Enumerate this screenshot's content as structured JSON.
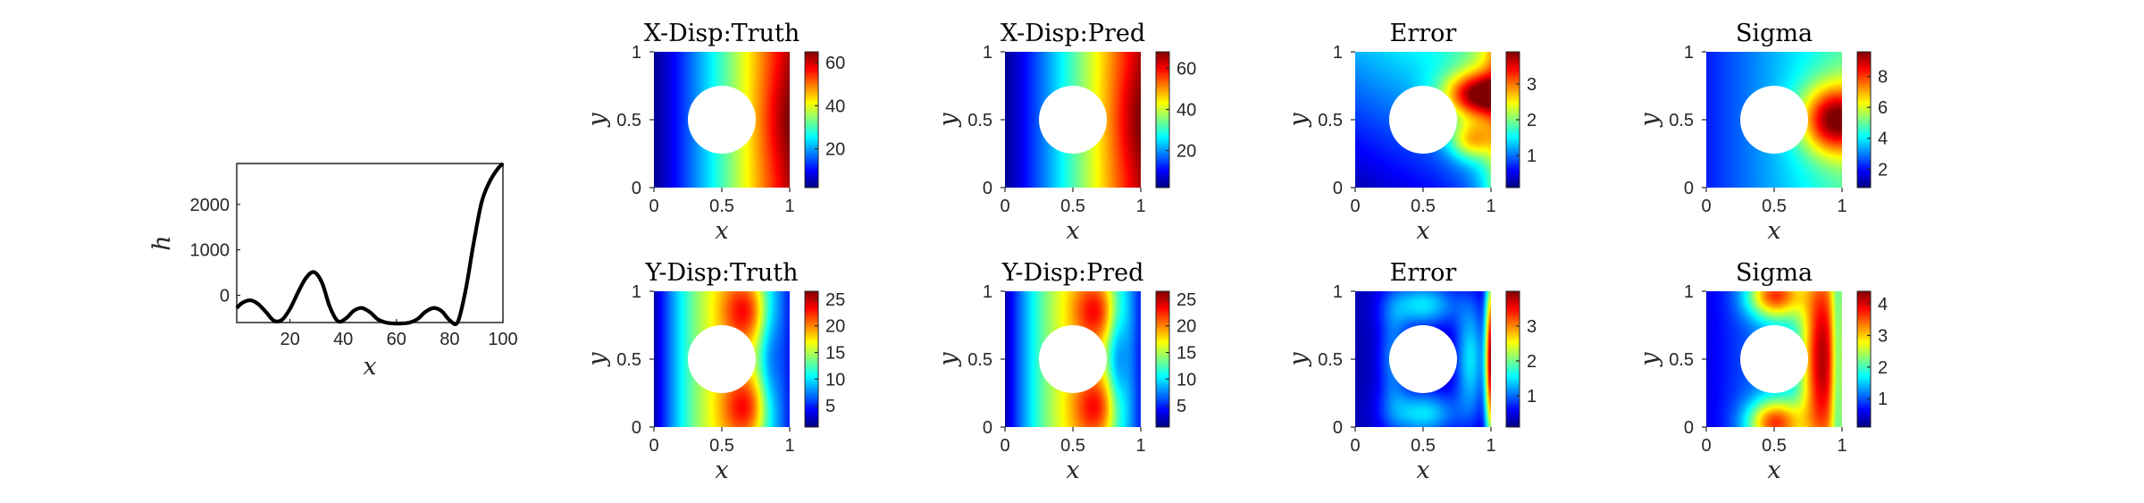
{
  "chart_data": [
    {
      "type": "line",
      "title": "",
      "xlabel": "x",
      "ylabel": "h",
      "xlim": [
        0,
        100
      ],
      "ylim": [
        -600,
        2900
      ],
      "xticks": [
        "20",
        "40",
        "60",
        "80",
        "100"
      ],
      "yticks": [
        "0",
        "1000",
        "2000"
      ],
      "grid": false,
      "legend": "none",
      "series": [
        {
          "color": "#000000",
          "x": [
            0,
            2,
            5,
            8,
            11,
            14,
            17,
            20,
            23,
            26,
            29,
            32,
            35,
            38,
            41,
            44,
            47,
            50,
            53,
            56,
            59,
            62,
            65,
            68,
            71,
            74,
            77,
            80,
            83,
            86,
            89,
            92,
            95,
            98,
            100
          ],
          "y": [
            -280,
            -170,
            -110,
            -190,
            -370,
            -560,
            -540,
            -300,
            60,
            380,
            510,
            280,
            -260,
            -570,
            -510,
            -340,
            -280,
            -370,
            -530,
            -600,
            -620,
            -620,
            -600,
            -520,
            -360,
            -280,
            -350,
            -550,
            -590,
            120,
            1150,
            2050,
            2500,
            2780,
            2900
          ]
        }
      ]
    },
    {
      "type": "heatmap",
      "title": "X-Disp:Truth",
      "xlabel": "x",
      "ylabel": "y",
      "xlim": [
        0,
        1
      ],
      "ylim": [
        0,
        1
      ],
      "xticks": [
        "0",
        "0.5",
        "1"
      ],
      "yticks": [
        "0",
        "0.5",
        "1"
      ],
      "colormap": "jet",
      "colorbar": {
        "min": 2,
        "max": 65,
        "ticks": [
          "20",
          "40",
          "60"
        ],
        "tick_values": [
          20,
          40,
          60
        ]
      },
      "hole": {
        "center": [
          0.5,
          0.5
        ],
        "radius": 0.25
      }
    },
    {
      "type": "heatmap",
      "title": "X-Disp:Pred",
      "xlabel": "x",
      "ylabel": "y",
      "xlim": [
        0,
        1
      ],
      "ylim": [
        0,
        1
      ],
      "xticks": [
        "0",
        "0.5",
        "1"
      ],
      "yticks": [
        "0",
        "0.5",
        "1"
      ],
      "colormap": "jet",
      "colorbar": {
        "min": 2,
        "max": 68,
        "ticks": [
          "20",
          "40",
          "60"
        ],
        "tick_values": [
          20,
          40,
          60
        ]
      },
      "hole": {
        "center": [
          0.5,
          0.5
        ],
        "radius": 0.25
      }
    },
    {
      "type": "heatmap",
      "title": "Error",
      "xlabel": "x",
      "ylabel": "y",
      "xlim": [
        0,
        1
      ],
      "ylim": [
        0,
        1
      ],
      "xticks": [
        "0",
        "0.5",
        "1"
      ],
      "yticks": [
        "0",
        "0.5",
        "1"
      ],
      "colormap": "jet",
      "colorbar": {
        "min": 0.1,
        "max": 3.9,
        "ticks": [
          "1",
          "2",
          "3"
        ],
        "tick_values": [
          1,
          2,
          3
        ]
      },
      "hole": {
        "center": [
          0.5,
          0.5
        ],
        "radius": 0.25
      }
    },
    {
      "type": "heatmap",
      "title": "Sigma",
      "xlabel": "x",
      "ylabel": "y",
      "xlim": [
        0,
        1
      ],
      "ylim": [
        0,
        1
      ],
      "xticks": [
        "0",
        "0.5",
        "1"
      ],
      "yticks": [
        "0",
        "0.5",
        "1"
      ],
      "colormap": "jet",
      "colorbar": {
        "min": 0.8,
        "max": 9.6,
        "ticks": [
          "2",
          "4",
          "6",
          "8"
        ],
        "tick_values": [
          2,
          4,
          6,
          8
        ]
      },
      "hole": {
        "center": [
          0.5,
          0.5
        ],
        "radius": 0.25
      }
    },
    {
      "type": "heatmap",
      "title": "Y-Disp:Truth",
      "xlabel": "x",
      "ylabel": "y",
      "xlim": [
        0,
        1
      ],
      "ylim": [
        0,
        1
      ],
      "xticks": [
        "0",
        "0.5",
        "1"
      ],
      "yticks": [
        "0",
        "0.5",
        "1"
      ],
      "colormap": "jet",
      "colorbar": {
        "min": 1,
        "max": 26.5,
        "ticks": [
          "5",
          "10",
          "15",
          "20",
          "25"
        ],
        "tick_values": [
          5,
          10,
          15,
          20,
          25
        ]
      },
      "hole": {
        "center": [
          0.5,
          0.5
        ],
        "radius": 0.25
      }
    },
    {
      "type": "heatmap",
      "title": "Y-Disp:Pred",
      "xlabel": "x",
      "ylabel": "y",
      "xlim": [
        0,
        1
      ],
      "ylim": [
        0,
        1
      ],
      "xticks": [
        "0",
        "0.5",
        "1"
      ],
      "yticks": [
        "0",
        "0.5",
        "1"
      ],
      "colormap": "jet",
      "colorbar": {
        "min": 1,
        "max": 26.5,
        "ticks": [
          "5",
          "10",
          "15",
          "20",
          "25"
        ],
        "tick_values": [
          5,
          10,
          15,
          20,
          25
        ]
      },
      "hole": {
        "center": [
          0.5,
          0.5
        ],
        "radius": 0.25
      }
    },
    {
      "type": "heatmap",
      "title": "Error",
      "xlabel": "x",
      "ylabel": "y",
      "xlim": [
        0,
        1
      ],
      "ylim": [
        0,
        1
      ],
      "xticks": [
        "0",
        "0.5",
        "1"
      ],
      "yticks": [
        "0",
        "0.5",
        "1"
      ],
      "colormap": "jet",
      "colorbar": {
        "min": 0.1,
        "max": 4.0,
        "ticks": [
          "1",
          "2",
          "3"
        ],
        "tick_values": [
          1,
          2,
          3
        ]
      },
      "hole": {
        "center": [
          0.5,
          0.5
        ],
        "radius": 0.25
      }
    },
    {
      "type": "heatmap",
      "title": "Sigma",
      "xlabel": "x",
      "ylabel": "y",
      "xlim": [
        0,
        1
      ],
      "ylim": [
        0,
        1
      ],
      "xticks": [
        "0",
        "0.5",
        "1"
      ],
      "yticks": [
        "0",
        "0.5",
        "1"
      ],
      "colormap": "jet",
      "colorbar": {
        "min": 0.1,
        "max": 4.4,
        "ticks": [
          "1",
          "2",
          "3",
          "4"
        ],
        "tick_values": [
          1,
          2,
          3,
          4
        ]
      },
      "hole": {
        "center": [
          0.5,
          0.5
        ],
        "radius": 0.25
      }
    }
  ]
}
